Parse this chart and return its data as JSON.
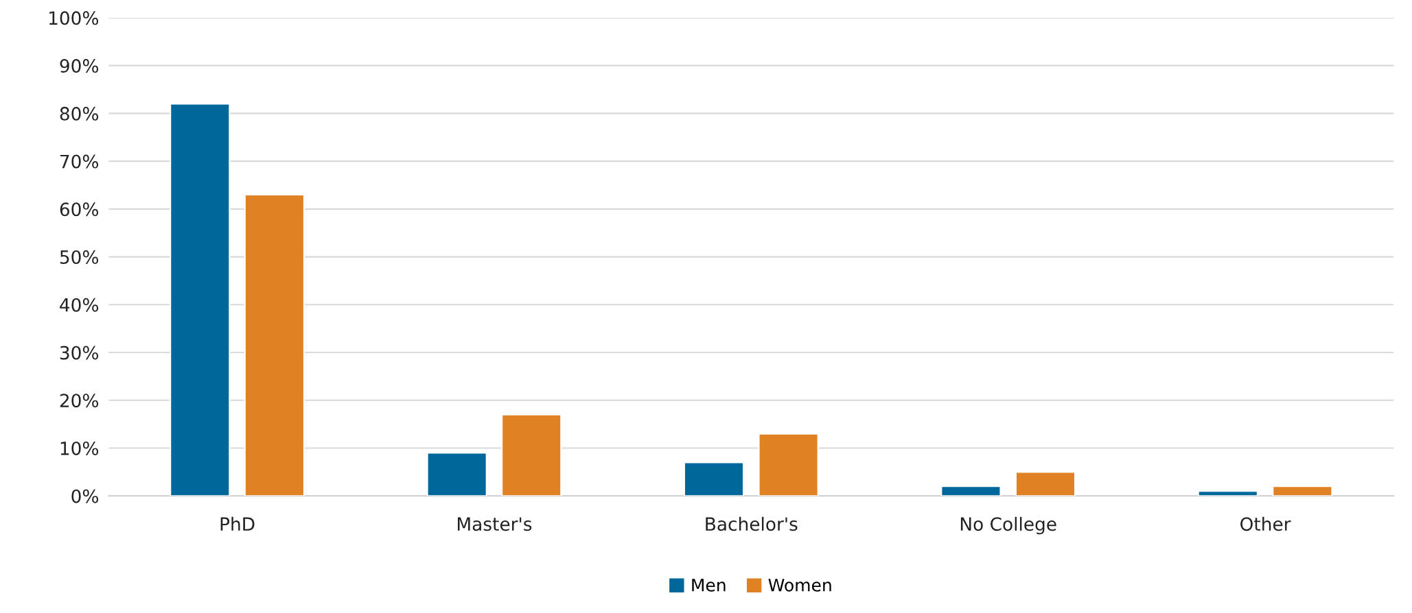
{
  "chart_data": {
    "type": "bar",
    "categories": [
      "PhD",
      "Master's",
      "Bachelor's",
      "No College",
      "Other"
    ],
    "series": [
      {
        "name": "Men",
        "color": "#00679a",
        "values": [
          82,
          9,
          7,
          2,
          1
        ]
      },
      {
        "name": "Women",
        "color": "#e08124",
        "values": [
          63,
          17,
          13,
          5,
          2
        ]
      }
    ],
    "ylim": [
      0,
      100
    ],
    "yticks": [
      {
        "value": 0,
        "label": "0%"
      },
      {
        "value": 10,
        "label": "10%"
      },
      {
        "value": 20,
        "label": "20%"
      },
      {
        "value": 30,
        "label": "30%"
      },
      {
        "value": 40,
        "label": "40%"
      },
      {
        "value": 50,
        "label": "50%"
      },
      {
        "value": 60,
        "label": "60%"
      },
      {
        "value": 70,
        "label": "70%"
      },
      {
        "value": 80,
        "label": "80%"
      },
      {
        "value": 90,
        "label": "90%"
      },
      {
        "value": 100,
        "label": "100%"
      }
    ],
    "grid": "y",
    "legend": "bottom"
  }
}
